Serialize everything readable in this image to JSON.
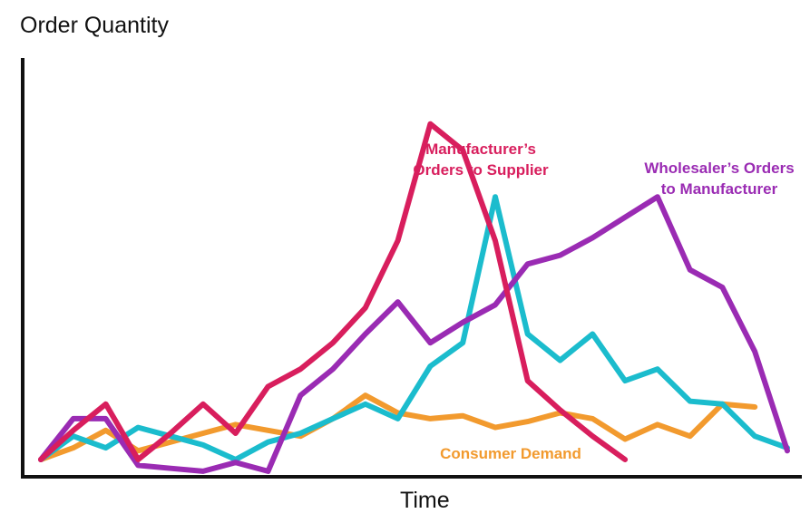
{
  "chart_data": {
    "type": "line",
    "xlabel": "Time",
    "ylabel": "Order Quantity",
    "grid": false,
    "ylim": [
      0,
      100
    ],
    "series": [
      {
        "key": "consumer",
        "name": "Consumer Demand",
        "color": "#f29a2e",
        "annotation": [
          "Consumer Demand"
        ],
        "values": [
          [
            0,
            0
          ],
          [
            1,
            4
          ],
          [
            2,
            10
          ],
          [
            3,
            3
          ],
          [
            4,
            6
          ],
          [
            5,
            9
          ],
          [
            6,
            12
          ],
          [
            7,
            10
          ],
          [
            8,
            8
          ],
          [
            9,
            14
          ],
          [
            10,
            22
          ],
          [
            11,
            16
          ],
          [
            12,
            14
          ],
          [
            13,
            15
          ],
          [
            14,
            11
          ],
          [
            15,
            13
          ],
          [
            16,
            16
          ],
          [
            17,
            14
          ],
          [
            18,
            7
          ],
          [
            19,
            12
          ],
          [
            20,
            8
          ],
          [
            21,
            19
          ],
          [
            22,
            18
          ]
        ]
      },
      {
        "key": "retailer",
        "color": "#1bbccd",
        "values": [
          [
            0,
            0
          ],
          [
            1,
            8
          ],
          [
            2,
            4
          ],
          [
            3,
            11
          ],
          [
            4,
            8
          ],
          [
            5,
            5
          ],
          [
            6,
            0
          ],
          [
            7,
            6
          ],
          [
            8,
            9
          ],
          [
            9,
            14
          ],
          [
            10,
            19
          ],
          [
            11,
            14
          ],
          [
            12,
            32
          ],
          [
            13,
            40
          ],
          [
            14,
            90
          ],
          [
            15,
            43
          ],
          [
            16,
            34
          ],
          [
            17,
            43
          ],
          [
            18,
            27
          ],
          [
            19,
            31
          ],
          [
            20,
            20
          ],
          [
            21,
            19
          ],
          [
            22,
            8
          ],
          [
            23,
            4
          ]
        ]
      },
      {
        "key": "wholesaler",
        "name": "Wholesaler's Orders to Manufacturer",
        "color": "#9a2bb3",
        "annotation": [
          "Wholesaler’s Orders",
          "to Manufacturer"
        ],
        "values": [
          [
            0,
            0
          ],
          [
            1,
            14
          ],
          [
            2,
            14
          ],
          [
            3,
            -2
          ],
          [
            4,
            -3
          ],
          [
            5,
            -4
          ],
          [
            6,
            -1
          ],
          [
            7,
            -4
          ],
          [
            8,
            22
          ],
          [
            9,
            31
          ],
          [
            10,
            43
          ],
          [
            11,
            54
          ],
          [
            12,
            40
          ],
          [
            13,
            47
          ],
          [
            14,
            53
          ],
          [
            15,
            67
          ],
          [
            16,
            70
          ],
          [
            17,
            76
          ],
          [
            18,
            83
          ],
          [
            19,
            90
          ],
          [
            20,
            65
          ],
          [
            21,
            59
          ],
          [
            22,
            37
          ],
          [
            23,
            3
          ]
        ]
      },
      {
        "key": "manufacturer",
        "name": "Manufacturer's Orders to Supplier",
        "color": "#d81e5d",
        "annotation": [
          "Manufacturer’s",
          "Orders to Supplier"
        ],
        "values": [
          [
            0,
            0
          ],
          [
            1,
            10
          ],
          [
            2,
            19
          ],
          [
            3,
            0
          ],
          [
            4,
            9
          ],
          [
            5,
            19
          ],
          [
            6,
            9
          ],
          [
            7,
            25
          ],
          [
            8,
            31
          ],
          [
            9,
            40
          ],
          [
            10,
            52
          ],
          [
            11,
            75
          ],
          [
            12,
            115
          ],
          [
            13,
            106
          ],
          [
            14,
            75
          ],
          [
            15,
            27
          ],
          [
            16,
            17
          ],
          [
            17,
            8
          ],
          [
            18,
            0
          ]
        ]
      }
    ]
  }
}
